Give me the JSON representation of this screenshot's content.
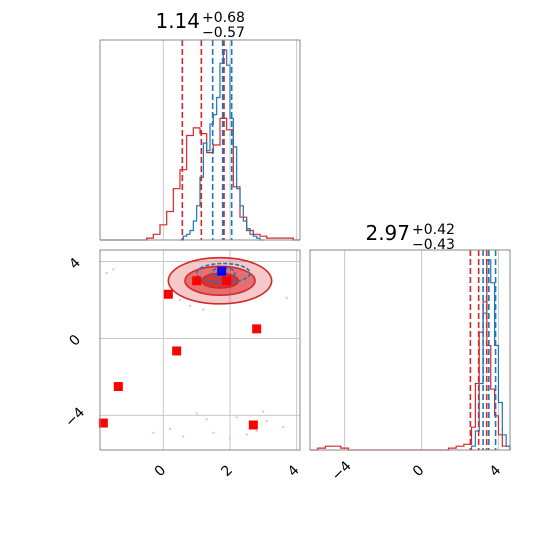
{
  "chart_data": [
    {
      "panel": "marginal-x",
      "type": "histogram",
      "title": {
        "value": "1.14",
        "plus": "+0.68",
        "minus": "−0.57"
      },
      "xlim": [
        -1.9,
        4.1
      ],
      "grid": true,
      "series": [
        {
          "name": "",
          "color": "#d62728",
          "bin_edges": [
            -1.9,
            -1.7,
            -1.5,
            -1.3,
            -1.1,
            -0.9,
            -0.7,
            -0.5,
            -0.3,
            -0.1,
            0.1,
            0.3,
            0.5,
            0.7,
            0.9,
            1.1,
            1.3,
            1.5,
            1.7,
            1.9,
            2.1,
            2.3,
            2.5,
            2.7,
            2.9,
            3.1,
            3.3,
            3.5,
            3.7,
            3.9,
            4.1
          ],
          "values": [
            0,
            0,
            0,
            0,
            0,
            0,
            0,
            0.01,
            0.03,
            0.08,
            0.15,
            0.27,
            0.37,
            0.55,
            0.59,
            0.56,
            0.46,
            0.5,
            0.64,
            0.58,
            0.28,
            0.12,
            0.05,
            0.03,
            0.02,
            0.01,
            0.01,
            0.01,
            0.01,
            0
          ]
        },
        {
          "name": "",
          "color": "#1f77b4",
          "bin_edges": [
            0.5,
            0.6,
            0.7,
            0.8,
            0.9,
            1.0,
            1.1,
            1.2,
            1.3,
            1.4,
            1.5,
            1.6,
            1.7,
            1.8,
            1.9,
            2.0,
            2.1,
            2.2,
            2.3,
            2.4,
            2.5,
            2.6,
            2.7,
            2.8,
            2.9,
            3.0
          ],
          "values": [
            0,
            0.02,
            0.03,
            0.05,
            0.1,
            0.18,
            0.33,
            0.51,
            0.47,
            0.61,
            0.66,
            0.75,
            0.93,
            1.0,
            0.92,
            0.64,
            0.49,
            0.27,
            0.18,
            0.1,
            0.06,
            0.03,
            0.02,
            0.01,
            0
          ]
        }
      ],
      "quantile_lines": [
        {
          "color": "#d62728",
          "x": [
            0.57,
            1.14,
            1.82
          ]
        },
        {
          "color": "#1f77b4",
          "x": [
            1.48,
            1.78,
            2.05
          ]
        }
      ]
    },
    {
      "panel": "joint",
      "type": "scatter",
      "xlim": [
        -1.9,
        4.1
      ],
      "ylim": [
        -5.8,
        4.6
      ],
      "xticks": [
        "0",
        "2",
        "4"
      ],
      "yticks": [
        "−4",
        "0",
        "4"
      ],
      "grid": true,
      "contours": [
        {
          "color": "#d62728",
          "fill": "#d62728",
          "center": [
            1.7,
            3.0
          ],
          "levels": [
            {
              "rx": 1.55,
              "ry": 1.2,
              "opacity": 0.25
            },
            {
              "rx": 1.05,
              "ry": 0.75,
              "opacity": 0.55
            },
            {
              "rx": 0.55,
              "ry": 0.38,
              "opacity": 0.8
            }
          ]
        },
        {
          "color": "#1f77b4",
          "fill": "none",
          "center": [
            1.8,
            3.4
          ],
          "levels": [
            {
              "rx": 0.8,
              "ry": 0.5,
              "opacity": 1
            },
            {
              "rx": 0.35,
              "ry": 0.28,
              "opacity": 1
            }
          ]
        }
      ],
      "points": [
        {
          "x": 2.8,
          "y": 0.5,
          "color": "#ff0000"
        },
        {
          "x": 0.4,
          "y": -0.65,
          "color": "#ff0000"
        },
        {
          "x": -1.35,
          "y": -2.5,
          "color": "#ff0000"
        },
        {
          "x": -1.8,
          "y": -4.4,
          "color": "#ff0000"
        },
        {
          "x": 2.7,
          "y": -4.5,
          "color": "#ff0000"
        },
        {
          "x": 0.15,
          "y": 2.3,
          "color": "#ff0000"
        },
        {
          "x": 1.0,
          "y": 3.0,
          "color": "#ff0000"
        },
        {
          "x": 1.9,
          "y": 3.0,
          "color": "#ff0000"
        },
        {
          "x": 1.75,
          "y": 3.5,
          "color": "#0000ff"
        }
      ]
    },
    {
      "panel": "marginal-y",
      "type": "histogram",
      "title": {
        "value": "2.97",
        "plus": "+0.42",
        "minus": "−0.43"
      },
      "xlim": [
        -5.8,
        4.6
      ],
      "xticks": [
        "−4",
        "0",
        "4"
      ],
      "grid": true,
      "series": [
        {
          "name": "",
          "color": "#d62728",
          "bin_edges": [
            -5.8,
            -5.4,
            -5.0,
            -4.6,
            -4.2,
            -3.8,
            -3.4,
            -3.0,
            -2.6,
            -2.2,
            -1.8,
            -1.4,
            -1.0,
            -0.6,
            -0.2,
            0.2,
            0.6,
            1.0,
            1.4,
            1.8,
            2.2,
            2.6,
            2.8,
            3.0,
            3.2,
            3.4,
            3.6,
            3.8,
            4.0,
            4.2,
            4.6
          ],
          "values": [
            0,
            0.01,
            0.02,
            0.02,
            0.01,
            0,
            0,
            0,
            0,
            0,
            0,
            0,
            0,
            0,
            0,
            0,
            0,
            0,
            0.01,
            0.02,
            0.03,
            0.12,
            0.35,
            0.62,
            0.78,
            0.55,
            0.32,
            0.18,
            0.08,
            0.02
          ]
        },
        {
          "name": "",
          "color": "#1f77b4",
          "bin_edges": [
            2.6,
            2.8,
            3.0,
            3.2,
            3.4,
            3.6,
            3.8,
            4.0,
            4.2,
            4.4,
            4.6
          ],
          "values": [
            0.02,
            0.1,
            0.35,
            0.72,
            1.0,
            0.88,
            0.55,
            0.25,
            0.08,
            0.02
          ]
        }
      ],
      "quantile_lines": [
        {
          "color": "#d62728",
          "x": [
            2.54,
            2.97,
            3.39
          ]
        },
        {
          "color": "#1f77b4",
          "x": [
            3.2,
            3.5,
            3.85
          ]
        }
      ]
    }
  ]
}
